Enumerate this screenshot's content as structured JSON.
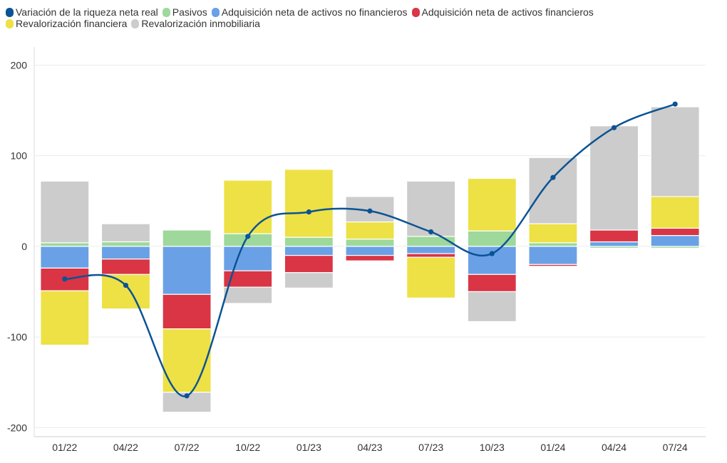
{
  "chart_data": {
    "type": "bar",
    "stacked": true,
    "categories": [
      "01/22",
      "04/22",
      "07/22",
      "10/22",
      "01/23",
      "04/23",
      "07/23",
      "10/23",
      "01/24",
      "04/24",
      "07/24"
    ],
    "ylim": [
      -210,
      220
    ],
    "yticks": [
      200,
      100,
      0,
      -100,
      -200
    ],
    "yticks_labels": [
      "200",
      "100",
      "0",
      "-100",
      "-200"
    ],
    "grid": true,
    "legend_position": "top-left",
    "line_series": {
      "name": "Variación de la riqueza neta real",
      "color": "#0b5394",
      "values": [
        -36,
        -43,
        -165,
        11,
        38,
        39,
        16,
        -8,
        76,
        131,
        157
      ]
    },
    "series": [
      {
        "name": "Pasivos",
        "color": "#9ed89a",
        "values": [
          4,
          5,
          18,
          14,
          10,
          8,
          11,
          17,
          4,
          -2,
          -2
        ]
      },
      {
        "name": "Adquisición neta de activos no financieros",
        "color": "#6aa1e6",
        "values": [
          -24,
          -14,
          -53,
          -27,
          -10,
          -10,
          -8,
          -31,
          -20,
          5,
          12
        ]
      },
      {
        "name": "Adquisición neta de activos financieros",
        "color": "#d93545",
        "values": [
          -25,
          -17,
          -38,
          -18,
          -19,
          -6,
          -4,
          -19,
          -2,
          13,
          8
        ]
      },
      {
        "name": "Revalorización financiera",
        "color": "#ede145",
        "values": [
          -60,
          -38,
          -70,
          59,
          75,
          19,
          -45,
          58,
          21,
          0,
          35
        ]
      },
      {
        "name": "Revalorización inmobiliaria",
        "color": "#cccccc",
        "values": [
          68,
          20,
          -22,
          -18,
          -17,
          28,
          61,
          -33,
          73,
          115,
          99
        ]
      }
    ]
  }
}
